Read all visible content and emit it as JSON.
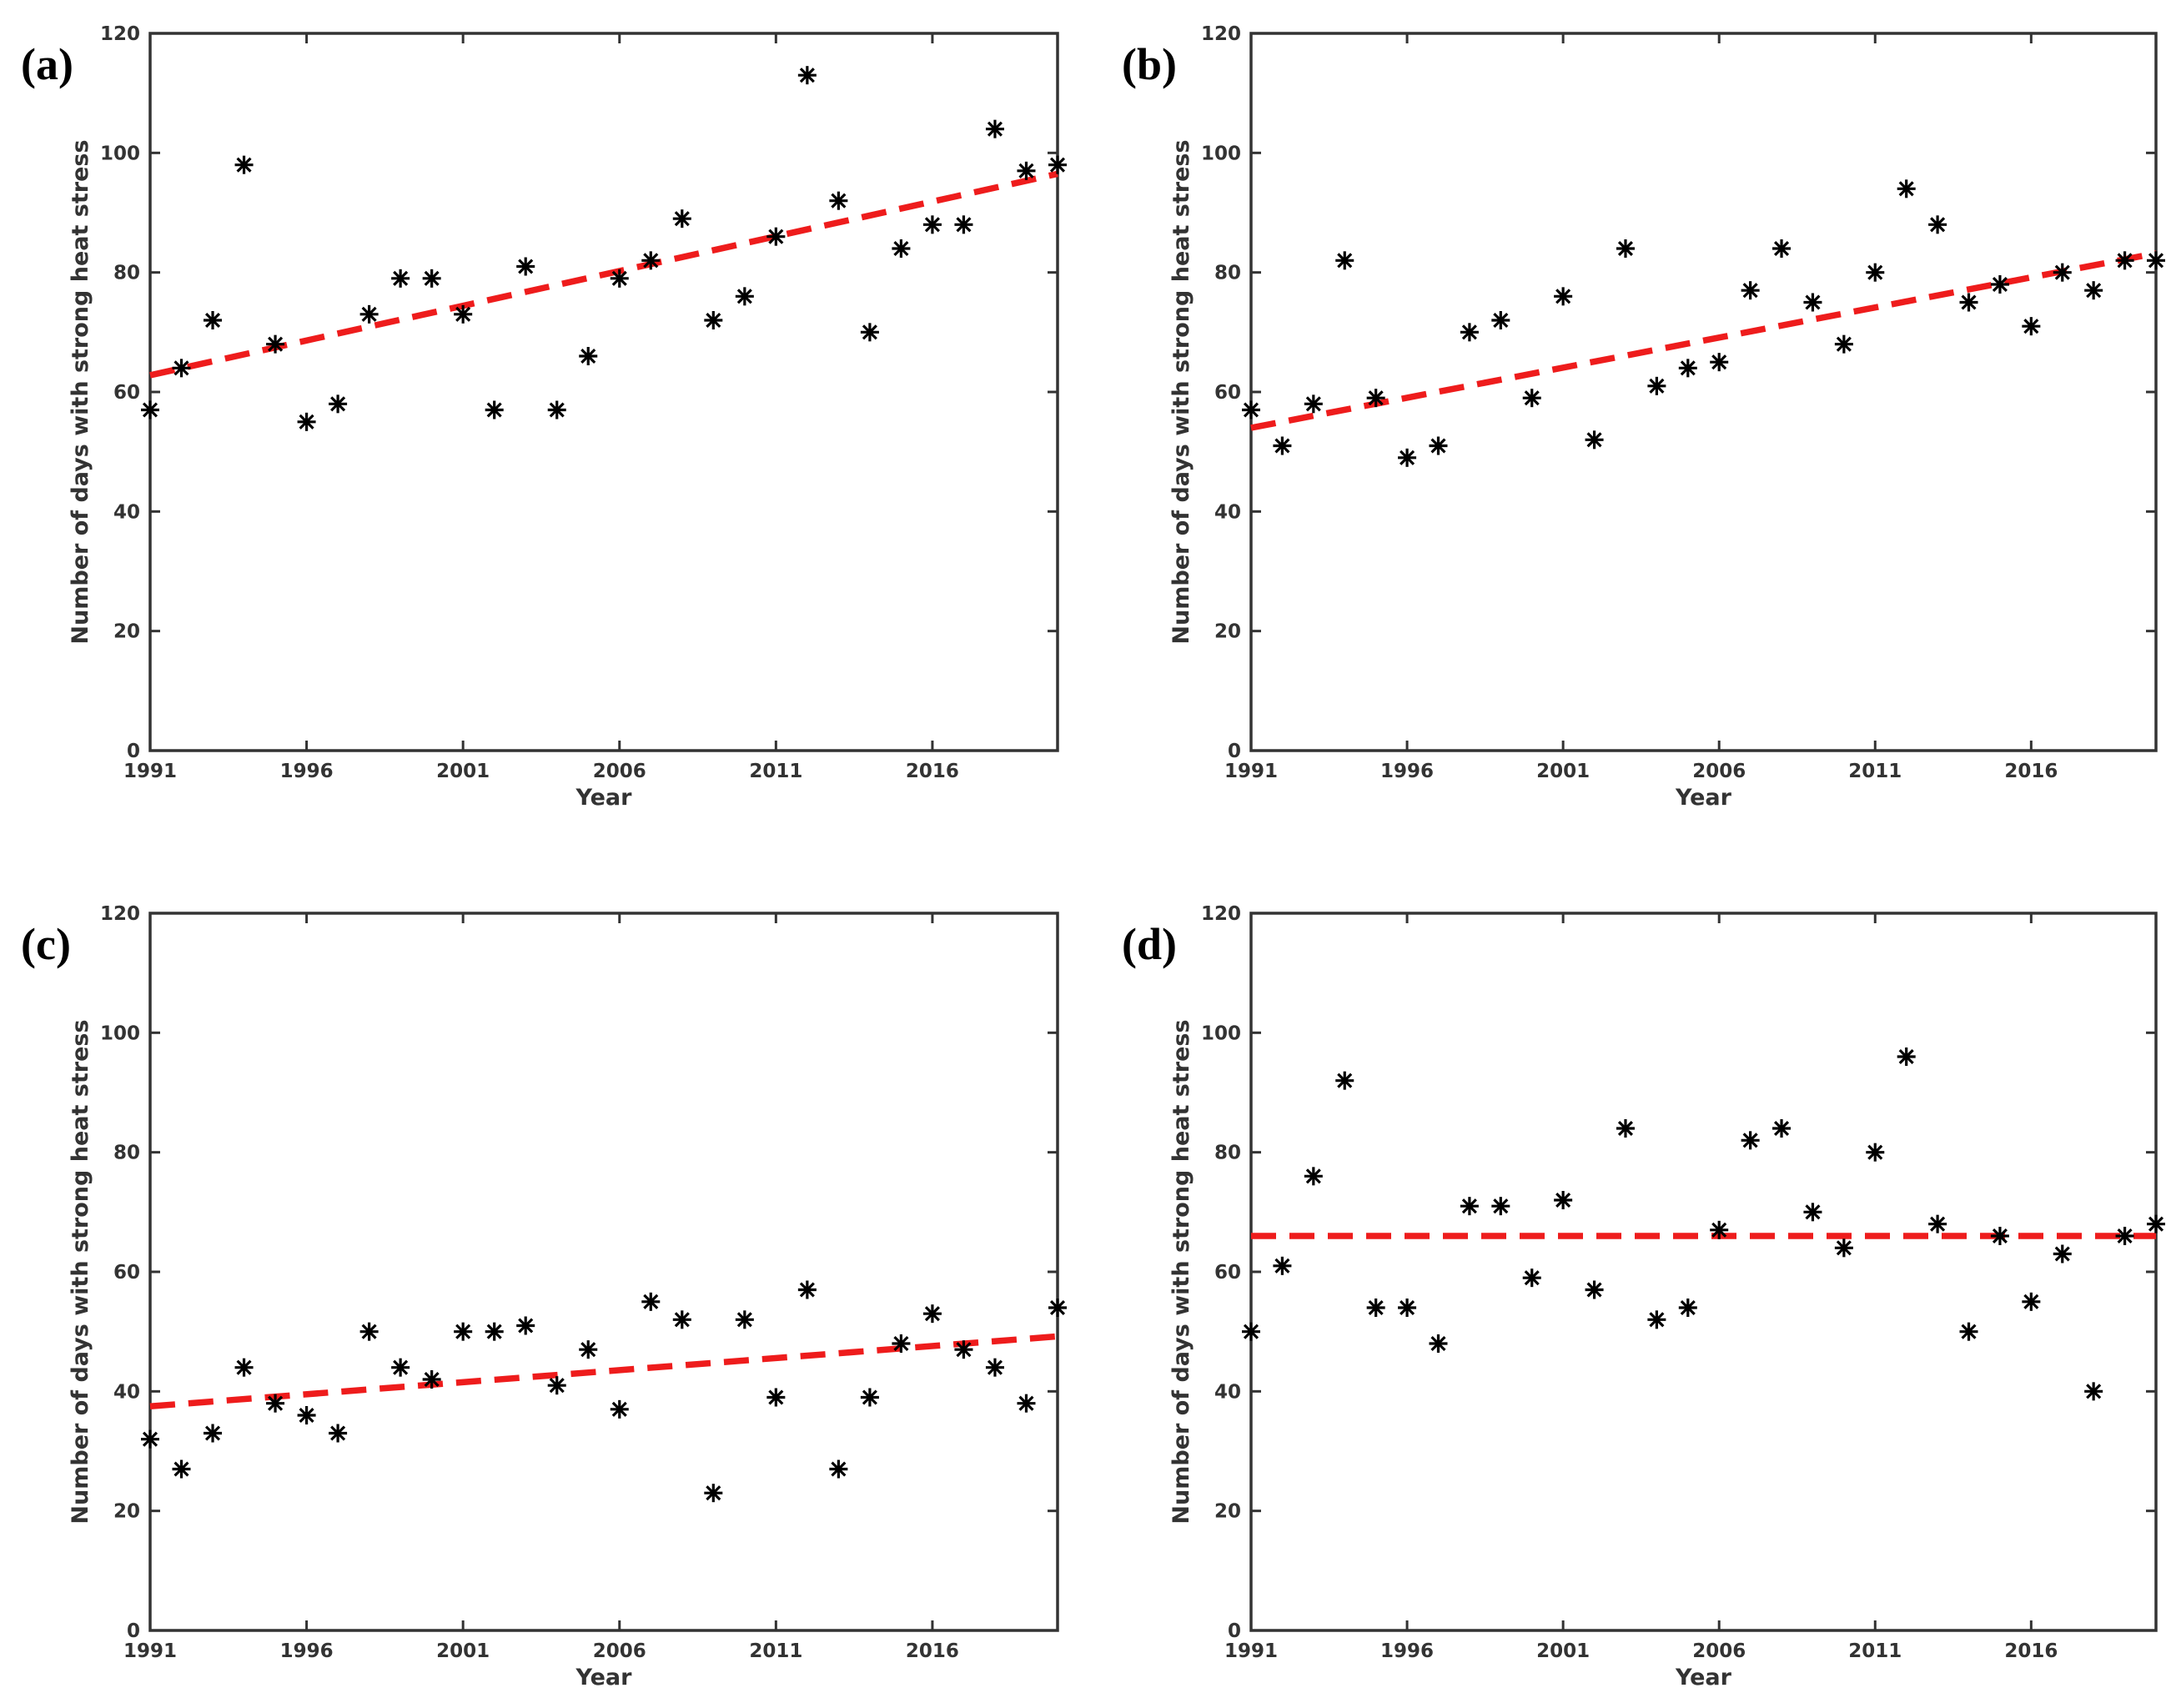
{
  "chart_data": [
    {
      "type": "scatter",
      "panel_label": "(a)",
      "xlabel": "Year",
      "ylabel": "Number of days with strong heat stress",
      "xlim": [
        1991,
        2020
      ],
      "ylim": [
        0,
        120
      ],
      "xticks": [
        1991,
        1996,
        2001,
        2006,
        2011,
        2016
      ],
      "yticks": [
        0,
        20,
        40,
        60,
        80,
        100,
        120
      ],
      "x": [
        1991,
        1992,
        1993,
        1994,
        1995,
        1996,
        1997,
        1998,
        1999,
        2000,
        2001,
        2002,
        2003,
        2004,
        2005,
        2006,
        2007,
        2008,
        2009,
        2010,
        2011,
        2012,
        2013,
        2014,
        2015,
        2016,
        2017,
        2018,
        2019,
        2020
      ],
      "values": [
        57,
        64,
        72,
        98,
        68,
        55,
        58,
        73,
        79,
        79,
        73,
        57,
        81,
        57,
        66,
        79,
        82,
        89,
        72,
        76,
        86,
        113,
        92,
        70,
        84,
        88,
        88,
        104,
        97,
        98
      ],
      "trend": {
        "x": [
          1991,
          2020
        ],
        "y": [
          62.8,
          96.5
        ]
      }
    },
    {
      "type": "scatter",
      "panel_label": "(b)",
      "xlabel": "Year",
      "ylabel": "Number of days with strong heat stress",
      "xlim": [
        1991,
        2020
      ],
      "ylim": [
        0,
        120
      ],
      "xticks": [
        1991,
        1996,
        2001,
        2006,
        2011,
        2016
      ],
      "yticks": [
        0,
        20,
        40,
        60,
        80,
        100,
        120
      ],
      "x": [
        1991,
        1992,
        1993,
        1994,
        1995,
        1996,
        1997,
        1998,
        1999,
        2000,
        2001,
        2002,
        2003,
        2004,
        2005,
        2006,
        2007,
        2008,
        2009,
        2010,
        2011,
        2012,
        2013,
        2014,
        2015,
        2016,
        2017,
        2018,
        2019,
        2020
      ],
      "values": [
        57,
        51,
        58,
        82,
        59,
        49,
        51,
        70,
        72,
        59,
        76,
        52,
        84,
        61,
        64,
        65,
        77,
        84,
        75,
        68,
        80,
        94,
        88,
        75,
        78,
        71,
        80,
        77,
        82,
        82
      ],
      "trend": {
        "x": [
          1991,
          2020
        ],
        "y": [
          54,
          83.2
        ]
      }
    },
    {
      "type": "scatter",
      "panel_label": "(c)",
      "xlabel": "Year",
      "ylabel": "Number of days with strong heat stress",
      "xlim": [
        1991,
        2020
      ],
      "ylim": [
        0,
        120
      ],
      "xticks": [
        1991,
        1996,
        2001,
        2006,
        2011,
        2016
      ],
      "yticks": [
        0,
        20,
        40,
        60,
        80,
        100,
        120
      ],
      "x": [
        1991,
        1992,
        1993,
        1994,
        1995,
        1996,
        1997,
        1998,
        1999,
        2000,
        2001,
        2002,
        2003,
        2004,
        2005,
        2006,
        2007,
        2008,
        2009,
        2010,
        2011,
        2012,
        2013,
        2014,
        2015,
        2016,
        2017,
        2018,
        2019,
        2020
      ],
      "values": [
        32,
        27,
        33,
        44,
        38,
        36,
        33,
        50,
        44,
        42,
        50,
        50,
        51,
        41,
        47,
        37,
        55,
        52,
        23,
        52,
        39,
        57,
        27,
        39,
        48,
        53,
        47,
        44,
        38,
        54
      ],
      "trend": {
        "x": [
          1991,
          2020
        ],
        "y": [
          37.5,
          49.2
        ]
      }
    },
    {
      "type": "scatter",
      "panel_label": "(d)",
      "xlabel": "Year",
      "ylabel": "Number of days with strong heat stress",
      "xlim": [
        1991,
        2020
      ],
      "ylim": [
        0,
        120
      ],
      "xticks": [
        1991,
        1996,
        2001,
        2006,
        2011,
        2016
      ],
      "yticks": [
        0,
        20,
        40,
        60,
        80,
        100,
        120
      ],
      "x": [
        1991,
        1992,
        1993,
        1994,
        1995,
        1996,
        1997,
        1998,
        1999,
        2000,
        2001,
        2002,
        2003,
        2004,
        2005,
        2006,
        2007,
        2008,
        2009,
        2010,
        2011,
        2012,
        2013,
        2014,
        2015,
        2016,
        2017,
        2018,
        2019,
        2020
      ],
      "values": [
        50,
        61,
        76,
        92,
        54,
        54,
        48,
        71,
        71,
        59,
        72,
        57,
        84,
        52,
        54,
        67,
        82,
        84,
        70,
        64,
        80,
        96,
        68,
        50,
        66,
        55,
        63,
        40,
        66,
        68
      ],
      "trend": {
        "x": [
          1991,
          2020
        ],
        "y": [
          66,
          66
        ]
      }
    }
  ]
}
